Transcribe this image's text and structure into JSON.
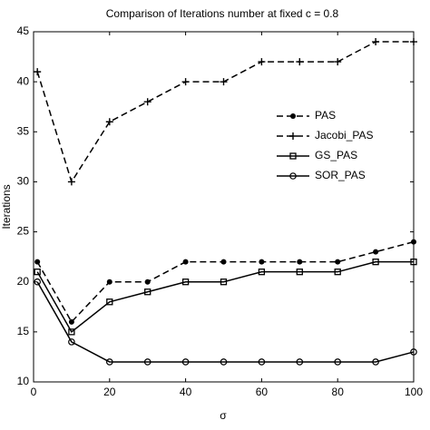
{
  "chart_data": {
    "type": "line",
    "title": "Comparison of Iterations number at fixed  c = 0.8",
    "x_label": "σ",
    "y_label": "Iterations",
    "x": [
      1,
      10,
      20,
      30,
      40,
      50,
      60,
      70,
      80,
      90,
      100
    ],
    "series": [
      {
        "name": "PAS",
        "color": "#000000",
        "dash": true,
        "marker": "dot",
        "values": [
          22,
          16,
          20,
          20,
          22,
          22,
          22,
          22,
          22,
          23,
          24
        ]
      },
      {
        "name": "Jacobi_PAS",
        "color": "#000000",
        "dash": true,
        "marker": "plus",
        "values": [
          41,
          30,
          36,
          38,
          40,
          40,
          42,
          42,
          42,
          44,
          44
        ]
      },
      {
        "name": "GS_PAS",
        "color": "#000000",
        "dash": false,
        "marker": "square",
        "values": [
          21,
          15,
          18,
          19,
          20,
          20,
          21,
          21,
          21,
          22,
          22
        ]
      },
      {
        "name": "SOR_PAS",
        "color": "#000000",
        "dash": false,
        "marker": "circle",
        "values": [
          20,
          14,
          12,
          12,
          12,
          12,
          12,
          12,
          12,
          12,
          13
        ]
      }
    ],
    "xlim": [
      0,
      100
    ],
    "xticks": [
      0,
      20,
      40,
      60,
      80,
      100
    ],
    "ylim": [
      10,
      45
    ],
    "yticks": [
      10,
      15,
      20,
      25,
      30,
      35,
      40,
      45
    ],
    "grid": false
  }
}
